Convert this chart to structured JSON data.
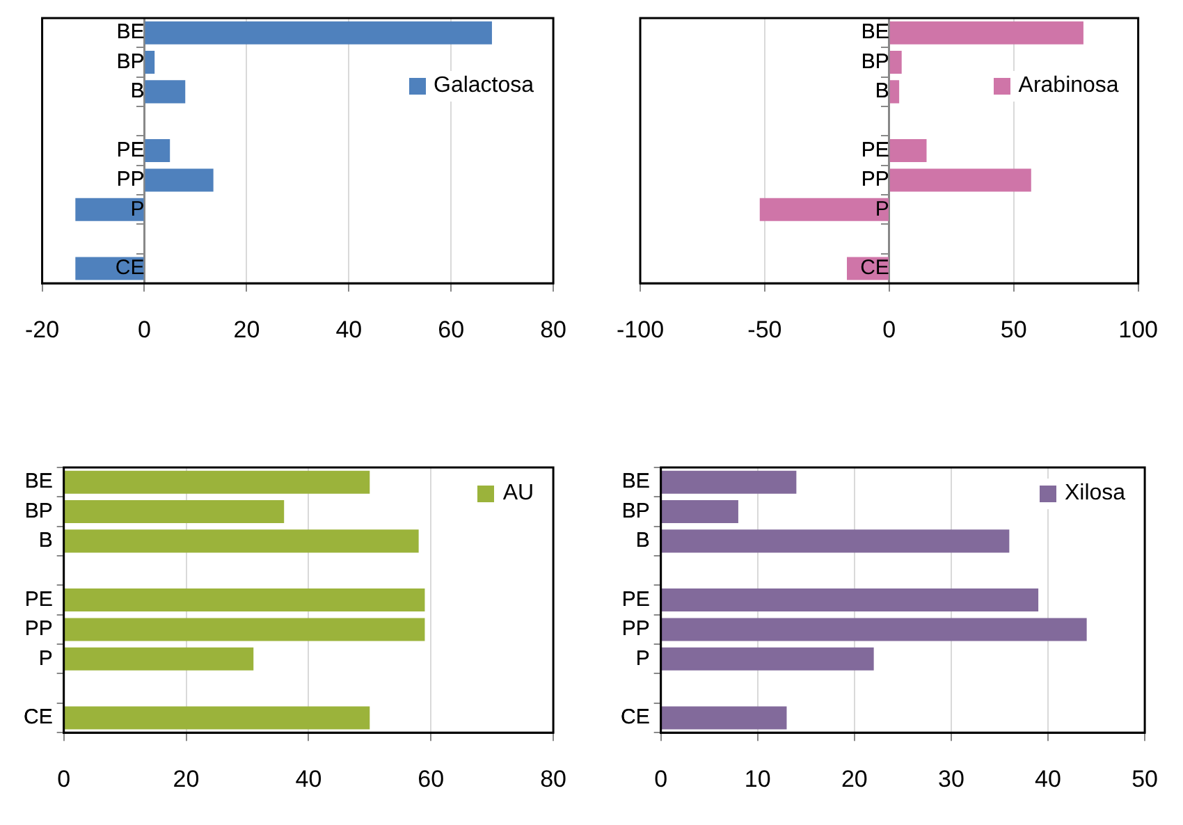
{
  "chart_data": [
    {
      "type": "bar",
      "orientation": "horizontal",
      "categories": [
        "BE",
        "BP",
        "B",
        null,
        "PE",
        "PP",
        "P",
        null,
        "CE"
      ],
      "series": [
        {
          "name": "Galactosa",
          "color": "#4f81bd",
          "values": [
            68,
            2,
            8,
            null,
            5,
            13.5,
            -13.5,
            null,
            -13.5
          ]
        }
      ],
      "xlim": [
        -20,
        80
      ],
      "xticks": [
        -20,
        0,
        20,
        40,
        60,
        80
      ],
      "grid": "x",
      "legend": "top right"
    },
    {
      "type": "bar",
      "orientation": "horizontal",
      "categories": [
        "BE",
        "BP",
        "B",
        null,
        "PE",
        "PP",
        "P",
        null,
        "CE"
      ],
      "series": [
        {
          "name": "Arabinosa",
          "color": "#cf75a8",
          "values": [
            78,
            5,
            4,
            null,
            15,
            57,
            -52,
            null,
            -17
          ]
        }
      ],
      "xlim": [
        -100,
        100
      ],
      "xticks": [
        -100,
        -50,
        0,
        50,
        100
      ],
      "grid": "x",
      "legend": "top right"
    },
    {
      "type": "bar",
      "orientation": "horizontal",
      "categories": [
        "BE",
        "BP",
        "B",
        null,
        "PE",
        "PP",
        "P",
        null,
        "CE"
      ],
      "series": [
        {
          "name": "AU",
          "color": "#9bb33b",
          "values": [
            50,
            36,
            58,
            null,
            59,
            59,
            31,
            null,
            50
          ]
        }
      ],
      "xlim": [
        0,
        80
      ],
      "xticks": [
        0,
        20,
        40,
        60,
        80
      ],
      "grid": "x",
      "legend": "top right"
    },
    {
      "type": "bar",
      "orientation": "horizontal",
      "categories": [
        "BE",
        "BP",
        "B",
        null,
        "PE",
        "PP",
        "P",
        null,
        "CE"
      ],
      "series": [
        {
          "name": "Xilosa",
          "color": "#826a9b",
          "values": [
            14,
            8,
            36,
            null,
            39,
            44,
            22,
            null,
            13
          ]
        }
      ],
      "xlim": [
        0,
        50
      ],
      "xticks": [
        0,
        10,
        20,
        30,
        40,
        50
      ],
      "grid": "x",
      "legend": "top right"
    }
  ]
}
